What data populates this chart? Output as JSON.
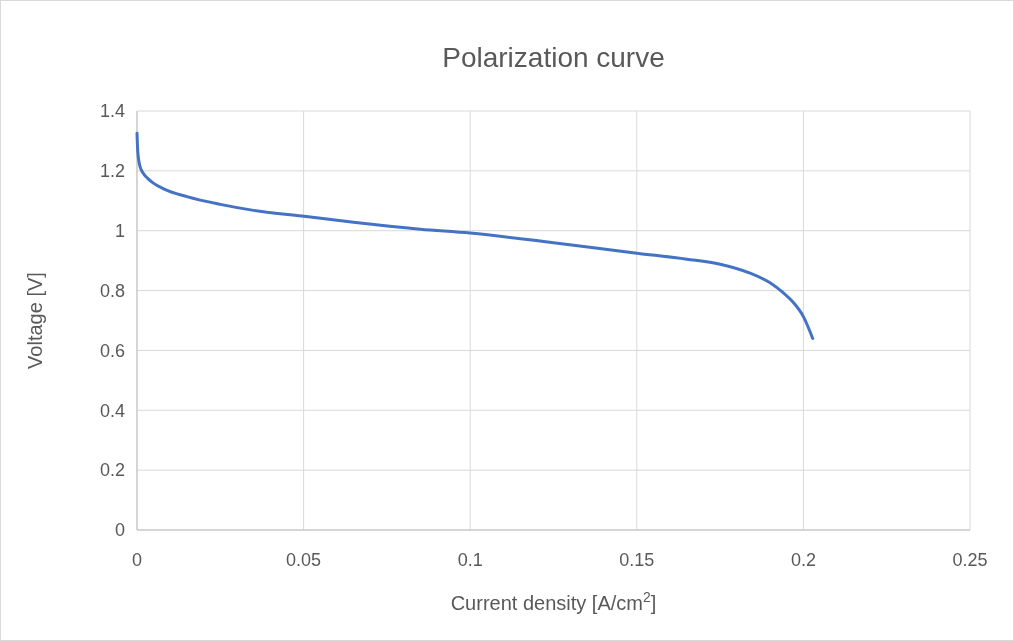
{
  "chart_data": {
    "type": "line",
    "title": "Polarization curve",
    "xlabel": "Current density [A/cm$^{2}$]",
    "ylabel": "Voltage [V]",
    "x": [
      0,
      0.0002,
      0.0006,
      0.0012,
      0.002,
      0.0032,
      0.0048,
      0.008,
      0.015,
      0.025,
      0.035,
      0.0495,
      0.065,
      0.085,
      0.1,
      0.125,
      0.15,
      0.165,
      0.175,
      0.184,
      0.19,
      0.194,
      0.197,
      0.2,
      0.2028
    ],
    "series": [
      {
        "color": "#4472c4",
        "values": [
          1.326,
          1.27,
          1.23,
          1.205,
          1.19,
          1.175,
          1.16,
          1.14,
          1.114,
          1.088,
          1.068,
          1.049,
          1.028,
          1.005,
          0.992,
          0.96,
          0.925,
          0.905,
          0.888,
          0.858,
          0.826,
          0.792,
          0.76,
          0.713,
          0.64
        ]
      }
    ],
    "xlim": [
      0,
      0.25
    ],
    "xticks": [
      0,
      0.05,
      0.1,
      0.15,
      0.2,
      0.25
    ],
    "ylim": [
      0,
      1.4
    ],
    "yticks": [
      0,
      0.2,
      0.4,
      0.6,
      0.8,
      1,
      1.2,
      1.4
    ],
    "grid": true,
    "marker": "none",
    "line_style": "solid"
  }
}
